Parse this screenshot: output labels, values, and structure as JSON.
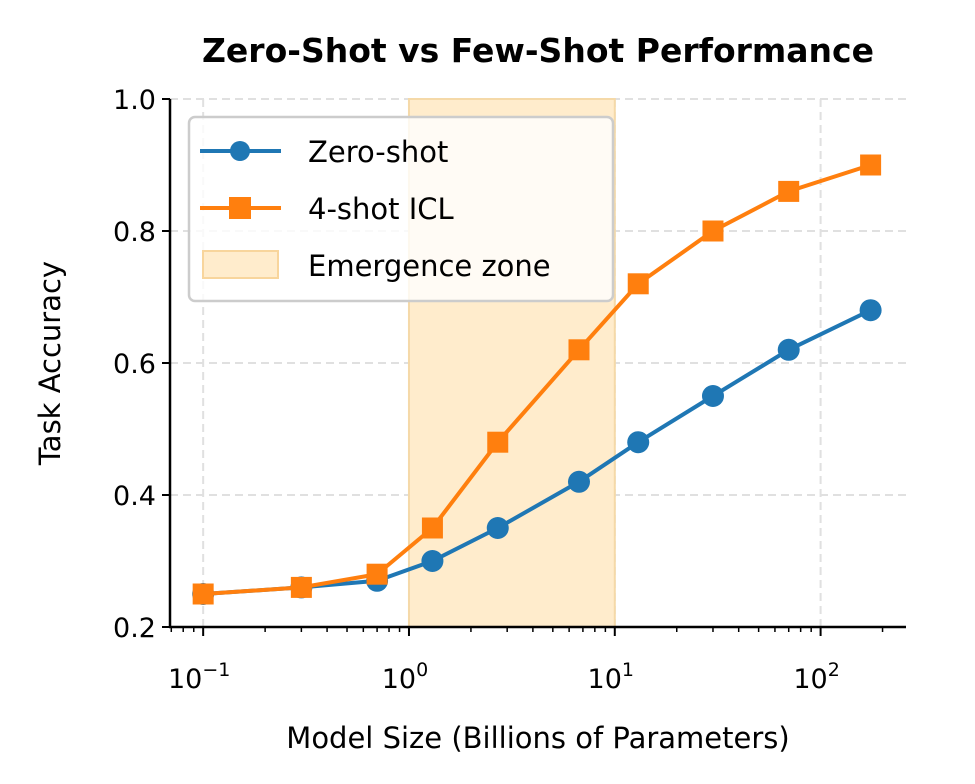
{
  "chart_data": {
    "type": "line",
    "title": "Zero-Shot vs Few-Shot Performance",
    "xlabel": "Model Size (Billions of Parameters)",
    "ylabel": "Task Accuracy",
    "xscale": "log",
    "xlim": [
      0.069,
      260
    ],
    "ylim": [
      0.2,
      1.0
    ],
    "xticks": [
      {
        "value": 0.1,
        "base": "10",
        "exp": "−1"
      },
      {
        "value": 1,
        "base": "10",
        "exp": "0"
      },
      {
        "value": 10,
        "base": "10",
        "exp": "1"
      },
      {
        "value": 100,
        "base": "10",
        "exp": "2"
      }
    ],
    "yticks": [
      "0.2",
      "0.4",
      "0.6",
      "0.8",
      "1.0"
    ],
    "grid": true,
    "legend_position": "top-left",
    "x": [
      0.1,
      0.3,
      0.7,
      1.3,
      2.7,
      6.7,
      13,
      30,
      70,
      175
    ],
    "series": [
      {
        "name": "Zero-shot",
        "color": "#1f77b4",
        "marker": "circle",
        "values": [
          0.25,
          0.26,
          0.27,
          0.3,
          0.35,
          0.42,
          0.48,
          0.55,
          0.62,
          0.68
        ]
      },
      {
        "name": "4-shot ICL",
        "color": "#ff7f0e",
        "marker": "square",
        "values": [
          0.25,
          0.26,
          0.28,
          0.35,
          0.48,
          0.62,
          0.72,
          0.8,
          0.86,
          0.9
        ]
      }
    ],
    "span": {
      "name": "Emergence zone",
      "from": 1,
      "to": 10,
      "color": "#ffeccc"
    }
  }
}
